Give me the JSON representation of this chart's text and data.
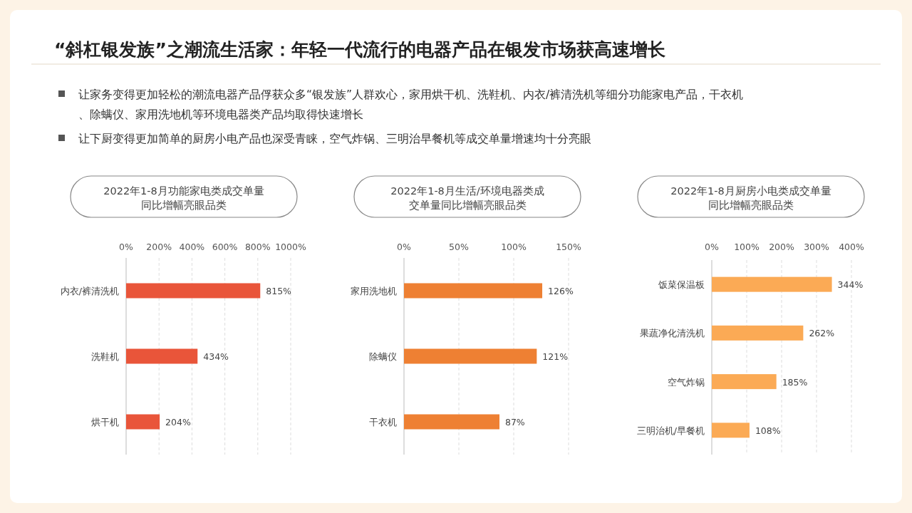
{
  "chart_data": [
    {
      "type": "other",
      "title": "“斜杠银发族”之潮流生活家：年轻一代流行的电器产品在银发市场获高速增长",
      "annotations": [
        "让家务变得更加轻松的潮流电器产品俘获众多“银发族”人群欢心，家用烘干机、洗鞋机、内衣/裤清洗机等细分功能家电产品，干衣机、除螨仪、家用洗地机等环境电器类产品均取得快速增长",
        "让下厨变得更加简单的厨房小电产品也深受青睐，空气炸锅、三明治早餐机等成交单量增速均十分亮眼"
      ]
    },
    {
      "type": "bar",
      "orientation": "horizontal",
      "title": "2022年1-8月功能家电类成交单量同比增幅亮眼品类",
      "categories": [
        "内衣/裤清洗机",
        "洗鞋机",
        "烘干机"
      ],
      "values": [
        815,
        434,
        204
      ],
      "value_labels": [
        "815%",
        "434%",
        "204%"
      ],
      "color": "#e9553a",
      "xlim": [
        0,
        1000
      ],
      "xticks": [
        {
          "value": 0,
          "label": "0%"
        },
        {
          "value": 200,
          "label": "200%"
        },
        {
          "value": 400,
          "label": "400%"
        },
        {
          "value": 600,
          "label": "600%"
        },
        {
          "value": 800,
          "label": "800%"
        },
        {
          "value": 1000,
          "label": "1000%"
        }
      ],
      "grid": "x"
    },
    {
      "type": "bar",
      "orientation": "horizontal",
      "title": "2022年1-8月生活/环境电器类成交单量同比增幅亮眼品类",
      "categories": [
        "家用洗地机",
        "除螨仪",
        "干衣机"
      ],
      "values": [
        126,
        121,
        87
      ],
      "value_labels": [
        "126%",
        "121%",
        "87%"
      ],
      "color": "#ee8033",
      "xlim": [
        0,
        150
      ],
      "xticks": [
        {
          "value": 0,
          "label": "0%"
        },
        {
          "value": 50,
          "label": "50%"
        },
        {
          "value": 100,
          "label": "100%"
        },
        {
          "value": 150,
          "label": "150%"
        }
      ],
      "grid": "x"
    },
    {
      "type": "bar",
      "orientation": "horizontal",
      "title": "2022年1-8月厨房小电类成交单量同比增幅亮眼品类",
      "categories": [
        "饭菜保温板",
        "果蔬净化清洗机",
        "空气炸锅",
        "三明治机/早餐机"
      ],
      "values": [
        344,
        262,
        185,
        108
      ],
      "value_labels": [
        "344%",
        "262%",
        "185%",
        "108%"
      ],
      "color": "#fbaa55",
      "xlim": [
        0,
        400
      ],
      "xticks": [
        {
          "value": 0,
          "label": "0%"
        },
        {
          "value": 100,
          "label": "100%"
        },
        {
          "value": 200,
          "label": "200%"
        },
        {
          "value": 300,
          "label": "300%"
        },
        {
          "value": 400,
          "label": "400%"
        }
      ],
      "grid": "x"
    }
  ]
}
